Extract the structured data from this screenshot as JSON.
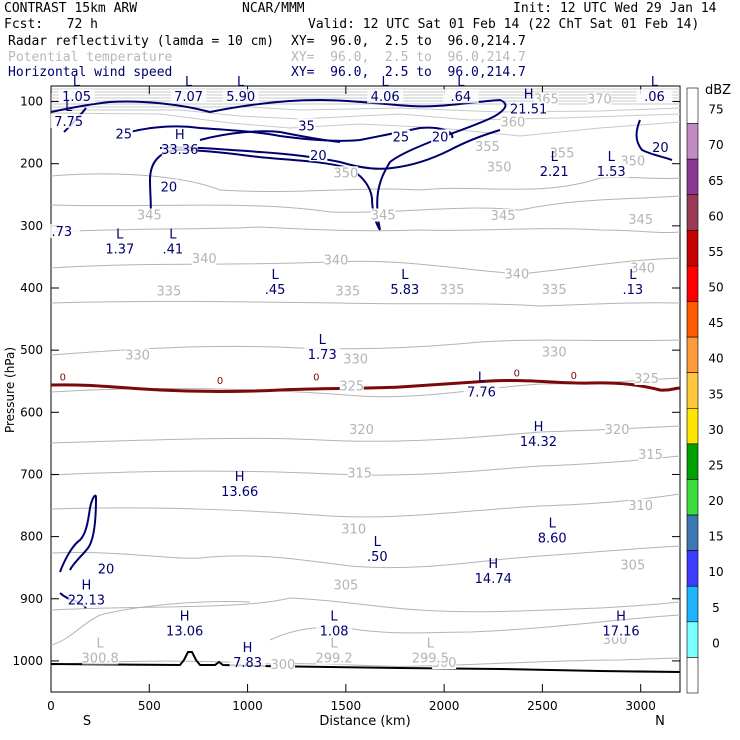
{
  "header": {
    "model": "CONTRAST 15km ARW",
    "org": "NCAR/MMM",
    "init": "Init: 12 UTC Wed 29 Jan 14",
    "fcst": "Fcst:   72 h",
    "valid": "Valid: 12 UTC Sat 01 Feb 14 (22 ChT Sat 01 Feb 14)",
    "fields": [
      {
        "name": "Radar reflectivity (lamda = 10 cm)",
        "xy": "XY=  96.0,  2.5 to  96.0,214.7",
        "color": "#000000"
      },
      {
        "name": "Potential temperature",
        "xy": "XY=  96.0,  2.5 to  96.0,214.7",
        "color": "#b8b8b8"
      },
      {
        "name": "Horizontal wind speed",
        "xy": "XY=  96.0,  2.5 to  96.0,214.7",
        "color": "#00006e"
      }
    ]
  },
  "chart_data": {
    "type": "cross-section-contour",
    "xlabel": "Distance (km)",
    "ylabel": "Pressure (hPa)",
    "xlim": [
      0,
      3200
    ],
    "ylim": [
      1050,
      75
    ],
    "x_ticks": [
      0,
      500,
      1000,
      1500,
      2000,
      2500,
      3000
    ],
    "y_ticks": [
      100,
      200,
      300,
      400,
      500,
      600,
      700,
      800,
      900,
      1000
    ],
    "end_labels": {
      "left": "S",
      "right": "N"
    },
    "colorbar": {
      "unit": "dBZ",
      "levels": [
        "75",
        "70",
        "65",
        "60",
        "55",
        "50",
        "45",
        "40",
        "35",
        "30",
        "25",
        "20",
        "15",
        "10",
        "5",
        "0"
      ],
      "colors": [
        "#ffffff",
        "#c38ac3",
        "#8a3a95",
        "#9a3a55",
        "#c80000",
        "#ff0000",
        "#ff5a00",
        "#ff9a3c",
        "#ffc83c",
        "#ffe600",
        "#00a000",
        "#3cdc3c",
        "#3c78b4",
        "#3c3cff",
        "#1eb4ff",
        "#78ffff",
        "#ffffff"
      ]
    },
    "theta_contour_labels": [
      {
        "text": "365",
        "x": 2520,
        "p": 98
      },
      {
        "text": "370",
        "x": 2790,
        "p": 98
      },
      {
        "text": "360",
        "x": 2350,
        "p": 135
      },
      {
        "text": "355",
        "x": 2220,
        "p": 175
      },
      {
        "text": "355",
        "x": 2600,
        "p": 185
      },
      {
        "text": "350",
        "x": 1500,
        "p": 217
      },
      {
        "text": "350",
        "x": 2280,
        "p": 208
      },
      {
        "text": "350",
        "x": 2960,
        "p": 198
      },
      {
        "text": "345",
        "x": 500,
        "p": 285
      },
      {
        "text": "345",
        "x": 1690,
        "p": 285
      },
      {
        "text": "345",
        "x": 2300,
        "p": 286
      },
      {
        "text": "345",
        "x": 3000,
        "p": 292
      },
      {
        "text": "340",
        "x": 780,
        "p": 355
      },
      {
        "text": "340",
        "x": 1450,
        "p": 357
      },
      {
        "text": "340",
        "x": 2370,
        "p": 380
      },
      {
        "text": "340",
        "x": 3010,
        "p": 370
      },
      {
        "text": "335",
        "x": 600,
        "p": 407
      },
      {
        "text": "335",
        "x": 1510,
        "p": 407
      },
      {
        "text": "335",
        "x": 2040,
        "p": 405
      },
      {
        "text": "335",
        "x": 2560,
        "p": 405
      },
      {
        "text": "330",
        "x": 440,
        "p": 510
      },
      {
        "text": "330",
        "x": 1550,
        "p": 517
      },
      {
        "text": "330",
        "x": 2560,
        "p": 505
      },
      {
        "text": "325",
        "x": 1530,
        "p": 560
      },
      {
        "text": "325",
        "x": 3030,
        "p": 548
      },
      {
        "text": "320",
        "x": 1580,
        "p": 630
      },
      {
        "text": "320",
        "x": 2880,
        "p": 630
      },
      {
        "text": "315",
        "x": 1570,
        "p": 700
      },
      {
        "text": "315",
        "x": 3050,
        "p": 670
      },
      {
        "text": "310",
        "x": 1540,
        "p": 790
      },
      {
        "text": "310",
        "x": 3000,
        "p": 752
      },
      {
        "text": "305",
        "x": 1500,
        "p": 880
      },
      {
        "text": "305",
        "x": 2960,
        "p": 848
      },
      {
        "text": "300",
        "x": 1180,
        "p": 1008
      },
      {
        "text": "300",
        "x": 2000,
        "p": 1005
      },
      {
        "text": "300",
        "x": 2870,
        "p": 968
      }
    ],
    "wind_contour_labels": [
      {
        "text": "25",
        "x": 370,
        "p": 153
      },
      {
        "text": "35",
        "x": 1300,
        "p": 140
      },
      {
        "text": "25",
        "x": 1780,
        "p": 158
      },
      {
        "text": "20",
        "x": 1980,
        "p": 158
      },
      {
        "text": "20",
        "x": 1360,
        "p": 188
      },
      {
        "text": "20",
        "x": 600,
        "p": 238
      },
      {
        "text": "20",
        "x": 3100,
        "p": 175
      },
      {
        "text": "20",
        "x": 280,
        "p": 853
      }
    ],
    "zero_reflectivity_labels": [
      {
        "text": "0",
        "x": 60,
        "p": 542
      },
      {
        "text": "0",
        "x": 860,
        "p": 548
      },
      {
        "text": "0",
        "x": 1350,
        "p": 542
      },
      {
        "text": "0",
        "x": 2370,
        "p": 536
      },
      {
        "text": "0",
        "x": 2660,
        "p": 540
      }
    ],
    "extrema": [
      {
        "kind": "L",
        "value": "1.05",
        "x": 130,
        "p": 85,
        "color": "navy"
      },
      {
        "kind": "L",
        "value": "7.07",
        "x": 700,
        "p": 85,
        "color": "navy"
      },
      {
        "kind": "L",
        "value": "5.90",
        "x": 965,
        "p": 85,
        "color": "navy"
      },
      {
        "kind": "L",
        "value": "4.06",
        "x": 1700,
        "p": 85,
        "color": "navy"
      },
      {
        "kind": "L",
        "value": ".64",
        "x": 2085,
        "p": 85,
        "color": "navy"
      },
      {
        "kind": "L",
        "value": ".06",
        "x": 3070,
        "p": 85,
        "color": "navy"
      },
      {
        "kind": "L",
        "value": "7.75",
        "x": 90,
        "p": 125,
        "color": "navy"
      },
      {
        "kind": "H",
        "value": "21.51",
        "x": 2430,
        "p": 105,
        "color": "navy"
      },
      {
        "kind": "H",
        "value": "33.36",
        "x": 655,
        "p": 170,
        "color": "navy"
      },
      {
        "kind": "L",
        "value": "2.21",
        "x": 2560,
        "p": 205,
        "color": "navy"
      },
      {
        "kind": "L",
        "value": "1.53",
        "x": 2850,
        "p": 205,
        "color": "navy"
      },
      {
        "kind": "",
        "value": ".73",
        "x": 55,
        "p": 302,
        "color": "navy"
      },
      {
        "kind": "L",
        "value": "1.37",
        "x": 350,
        "p": 330,
        "color": "navy"
      },
      {
        "kind": "L",
        "value": ".41",
        "x": 620,
        "p": 330,
        "color": "navy"
      },
      {
        "kind": "L",
        "value": ".45",
        "x": 1140,
        "p": 395,
        "color": "navy"
      },
      {
        "kind": "L",
        "value": "5.83",
        "x": 1800,
        "p": 395,
        "color": "navy"
      },
      {
        "kind": "L",
        "value": ".13",
        "x": 2960,
        "p": 395,
        "color": "navy"
      },
      {
        "kind": "L",
        "value": "1.73",
        "x": 1380,
        "p": 500,
        "color": "navy"
      },
      {
        "kind": "L",
        "value": "7.76",
        "x": 2190,
        "p": 560,
        "color": "navy"
      },
      {
        "kind": "H",
        "value": "14.32",
        "x": 2480,
        "p": 640,
        "color": "navy"
      },
      {
        "kind": "H",
        "value": "13.66",
        "x": 960,
        "p": 720,
        "color": "navy"
      },
      {
        "kind": "L",
        "value": "8.60",
        "x": 2550,
        "p": 795,
        "color": "navy"
      },
      {
        "kind": "L",
        "value": ".50",
        "x": 1660,
        "p": 825,
        "color": "navy"
      },
      {
        "kind": "H",
        "value": "14.74",
        "x": 2250,
        "p": 860,
        "color": "navy"
      },
      {
        "kind": "H",
        "value": "22.13",
        "x": 180,
        "p": 895,
        "color": "navy"
      },
      {
        "kind": "H",
        "value": "13.06",
        "x": 680,
        "p": 945,
        "color": "navy"
      },
      {
        "kind": "L",
        "value": "1.08",
        "x": 1440,
        "p": 945,
        "color": "navy"
      },
      {
        "kind": "H",
        "value": "17.16",
        "x": 2900,
        "p": 945,
        "color": "navy"
      },
      {
        "kind": "L",
        "value": "300.8",
        "x": 250,
        "p": 988,
        "color": "gray"
      },
      {
        "kind": "H",
        "value": "7.83",
        "x": 1000,
        "p": 995,
        "color": "navy"
      },
      {
        "kind": "L",
        "value": "299.2",
        "x": 1440,
        "p": 988,
        "color": "gray"
      },
      {
        "kind": "L",
        "value": "299.5",
        "x": 1930,
        "p": 988,
        "color": "gray"
      }
    ]
  }
}
